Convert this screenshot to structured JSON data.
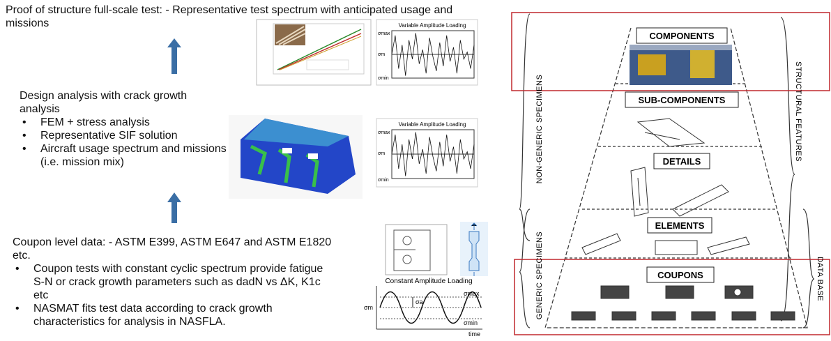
{
  "left_panel": {
    "top_block": {
      "text": "Proof of structure full-scale test: - Representative test spectrum with anticipated usage and missions"
    },
    "middle_block": {
      "heading": "Design analysis with crack growth analysis",
      "bullets": [
        "FEM + stress analysis",
        "Representative SIF solution",
        "Aircraft usage spectrum and missions (i.e. mission mix)"
      ]
    },
    "bottom_block": {
      "heading": "Coupon level data: - ASTM E399, ASTM E647 and ASTM E1820 etc.",
      "bullets": [
        "Coupon tests with constant cyclic spectrum provide fatigue S-N or crack growth parameters such as dadN vs ΔK, K1c etc",
        "NASMAT fits test data according to crack growth characteristics for analysis in NASFLA."
      ]
    }
  },
  "figures": {
    "variable_loading_top": {
      "title": "Variable Amplitude Loading",
      "labels": [
        "σmax",
        "σm",
        "σmin"
      ]
    },
    "variable_loading_middle": {
      "title": "Variable Amplitude Loading",
      "labels": [
        "σmax",
        "σm",
        "σmin"
      ]
    },
    "constant_loading": {
      "title": "Constant Amplitude Loading",
      "labels": [
        "σmax",
        "σa",
        "σm",
        "σmin",
        "time"
      ]
    }
  },
  "pyramid": {
    "levels": [
      "COMPONENTS",
      "SUB-COMPONENTS",
      "DETAILS",
      "ELEMENTS",
      "COUPONS"
    ],
    "left_labels": [
      "NON-GENERIC SPECIMENS",
      "GENERIC SPECIMENS"
    ],
    "right_labels": [
      "STRUCTURAL FEATURES",
      "DATA BASE"
    ]
  }
}
